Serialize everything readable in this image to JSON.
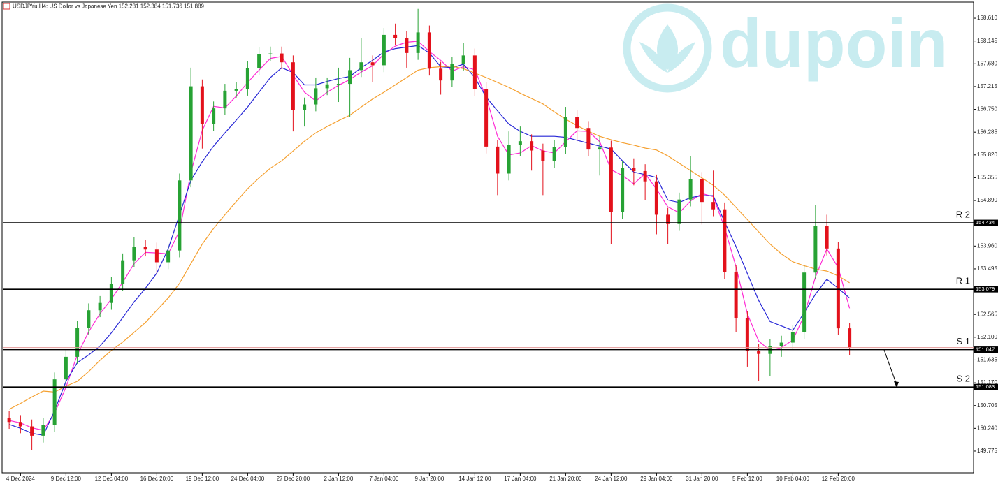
{
  "chart_data": {
    "type": "candlestick",
    "title": "USDJPYu,H4: US Dollar vs Japanese Yen 152.281 152.384 151.736 151.889",
    "watermark": "dupoin",
    "categories": [
      null,
      "4 Dec 2024",
      null,
      null,
      null,
      "9 Dec 12:00",
      null,
      null,
      null,
      "12 Dec 04:00",
      null,
      null,
      null,
      "16 Dec 20:00",
      null,
      null,
      null,
      "19 Dec 12:00",
      null,
      null,
      null,
      "24 Dec 04:00",
      null,
      null,
      null,
      "27 Dec 20:00",
      null,
      null,
      null,
      "2 Jan 12:00",
      null,
      null,
      null,
      "7 Jan 04:00",
      null,
      null,
      null,
      "9 Jan 20:00",
      null,
      null,
      null,
      "14 Jan 12:00",
      null,
      null,
      null,
      "17 Jan 04:00",
      null,
      null,
      null,
      "21 Jan 20:00",
      null,
      null,
      null,
      "24 Jan 12:00",
      null,
      null,
      null,
      "29 Jan 04:00",
      null,
      null,
      null,
      "31 Jan 20:00",
      null,
      null,
      null,
      "5 Feb 12:00",
      null,
      null,
      null,
      "10 Feb 04:00",
      null,
      null,
      null,
      "12 Feb 20:00",
      null
    ],
    "open": [
      150.45,
      150.37,
      150.28,
      150.09,
      150.31,
      151.24,
      151.7,
      152.29,
      152.65,
      152.8,
      153.19,
      153.67,
      153.94,
      153.89,
      153.63,
      153.87,
      155.3,
      157.22,
      156.45,
      156.77,
      157.13,
      157.17,
      157.59,
      157.88,
      157.89,
      157.71,
      156.74,
      156.85,
      157.18,
      157.26,
      157.27,
      157.55,
      157.71,
      157.65,
      158.27,
      158.2,
      157.9,
      158.32,
      157.58,
      157.34,
      157.68,
      157.85,
      157.16,
      155.99,
      155.44,
      156.03,
      156.1,
      155.91,
      155.7,
      155.98,
      156.59,
      156.37,
      155.93,
      155.97,
      154.65,
      155.56,
      155.49,
      155.28,
      154.6,
      154.41,
      154.91,
      155.33,
      154.86,
      154.71,
      153.43,
      152.49,
      151.82,
      151.76,
      151.92,
      151.99,
      152.2,
      153.42,
      154.37,
      153.91,
      152.281
    ],
    "high": [
      150.59,
      150.51,
      150.42,
      150.45,
      151.38,
      151.84,
      152.43,
      152.79,
      152.94,
      153.33,
      153.81,
      154.14,
      154.08,
      154.03,
      154.01,
      155.44,
      157.6,
      157.36,
      156.91,
      157.27,
      157.31,
      157.73,
      158.02,
      158.03,
      158.03,
      157.85,
      156.99,
      157.4,
      157.4,
      157.6,
      157.8,
      158.2,
      157.85,
      158.41,
      158.5,
      158.34,
      158.8,
      158.46,
      157.72,
      157.82,
      158.1,
      157.99,
      157.3,
      156.13,
      156.3,
      156.4,
      156.24,
      156.05,
      156.12,
      156.8,
      156.73,
      156.51,
      156.2,
      156.11,
      155.7,
      155.75,
      155.63,
      155.42,
      154.74,
      155.05,
      155.8,
      155.47,
      155.5,
      154.85,
      153.57,
      152.63,
      151.96,
      152.06,
      152.13,
      152.34,
      153.56,
      154.8,
      154.6,
      154.05,
      152.384
    ],
    "low": [
      150.23,
      150.14,
      149.8,
      149.95,
      150.17,
      151.1,
      151.56,
      152.15,
      152.51,
      152.66,
      153.05,
      153.53,
      153.75,
      153.4,
      153.49,
      153.73,
      155.16,
      155.95,
      156.31,
      156.63,
      156.99,
      157.03,
      157.45,
      157.74,
      157.57,
      156.3,
      156.4,
      156.71,
      157.04,
      156.9,
      156.6,
      157.41,
      157.3,
      157.51,
      158.06,
      157.6,
      157.76,
      157.44,
      157.05,
      157.2,
      157.54,
      157.02,
      155.85,
      155.0,
      155.3,
      155.8,
      155.5,
      155.0,
      155.56,
      155.84,
      156.1,
      155.79,
      155.4,
      154.0,
      154.51,
      155.2,
      154.9,
      154.2,
      154.0,
      154.27,
      154.77,
      154.4,
      154.57,
      153.29,
      152.2,
      151.5,
      151.2,
      151.3,
      151.7,
      151.85,
      152.06,
      153.28,
      153.77,
      152.14,
      151.736
    ],
    "close": [
      150.37,
      150.28,
      150.09,
      150.31,
      151.24,
      151.7,
      152.29,
      152.65,
      152.8,
      153.19,
      153.67,
      153.94,
      153.89,
      153.63,
      153.87,
      155.3,
      157.22,
      156.45,
      156.77,
      157.13,
      157.17,
      157.59,
      157.88,
      157.89,
      157.71,
      156.74,
      156.85,
      157.18,
      157.26,
      157.27,
      157.55,
      157.71,
      157.65,
      158.27,
      158.2,
      157.9,
      158.32,
      157.58,
      157.34,
      157.68,
      157.85,
      157.16,
      155.99,
      155.44,
      156.03,
      156.1,
      155.91,
      155.7,
      155.98,
      156.59,
      156.37,
      155.93,
      155.97,
      154.65,
      155.56,
      155.49,
      155.28,
      154.6,
      154.41,
      154.91,
      155.33,
      154.86,
      154.71,
      153.43,
      152.49,
      151.82,
      151.76,
      151.92,
      151.99,
      152.2,
      153.42,
      154.37,
      153.91,
      152.281,
      151.889
    ],
    "up_color": "#27a234",
    "down_color": "#e3111b",
    "series": [
      {
        "color": "#ff2ad4",
        "values": [
          150.4,
          150.35,
          150.25,
          150.2,
          150.55,
          151.08,
          151.74,
          152.21,
          152.58,
          152.88,
          153.22,
          153.6,
          153.83,
          153.82,
          153.8,
          154.27,
          155.46,
          156.32,
          156.81,
          156.78,
          157.02,
          157.3,
          157.55,
          157.79,
          157.83,
          157.45,
          157.1,
          156.92,
          157.1,
          157.24,
          157.36,
          157.51,
          157.64,
          157.88,
          158.04,
          158.12,
          158.14,
          157.93,
          157.75,
          157.53,
          157.62,
          157.56,
          157.0,
          156.2,
          155.82,
          155.86,
          156.01,
          155.9,
          155.86,
          156.09,
          156.31,
          156.3,
          156.09,
          155.52,
          155.4,
          155.23,
          155.44,
          155.12,
          154.76,
          154.64,
          154.88,
          155.03,
          154.97,
          154.33,
          153.54,
          152.58,
          152.02,
          151.83,
          151.89,
          152.04,
          152.54,
          153.33,
          153.9,
          153.52,
          152.69
        ]
      },
      {
        "color": "#2727d6",
        "values": [
          150.32,
          150.24,
          150.14,
          150.1,
          150.6,
          151.2,
          151.58,
          151.74,
          151.92,
          152.19,
          152.5,
          152.82,
          153.1,
          153.41,
          153.9,
          154.6,
          155.3,
          155.68,
          156.0,
          156.27,
          156.53,
          156.8,
          157.1,
          157.4,
          157.6,
          157.5,
          157.25,
          157.25,
          157.32,
          157.38,
          157.42,
          157.6,
          157.75,
          157.92,
          157.99,
          158.02,
          158.05,
          157.9,
          157.62,
          157.6,
          157.67,
          157.4,
          157.0,
          156.72,
          156.45,
          156.3,
          156.2,
          156.2,
          156.2,
          156.18,
          156.12,
          156.06,
          156.0,
          155.94,
          155.7,
          155.47,
          155.42,
          155.36,
          154.9,
          154.85,
          154.95,
          154.99,
          154.99,
          154.45,
          153.95,
          153.4,
          152.85,
          152.42,
          152.33,
          152.24,
          152.6,
          152.98,
          153.28,
          153.1,
          152.9
        ]
      },
      {
        "color": "#f5a030",
        "values": [
          150.63,
          150.75,
          150.88,
          151.0,
          150.98,
          151.1,
          151.2,
          151.4,
          151.63,
          151.83,
          152.0,
          152.2,
          152.4,
          152.65,
          152.9,
          153.2,
          153.6,
          154.0,
          154.32,
          154.6,
          154.87,
          155.13,
          155.35,
          155.55,
          155.7,
          155.9,
          156.1,
          156.27,
          156.4,
          156.52,
          156.63,
          156.8,
          156.96,
          157.1,
          157.25,
          157.4,
          157.55,
          157.6,
          157.62,
          157.63,
          157.58,
          157.49,
          157.4,
          157.3,
          157.2,
          157.08,
          156.97,
          156.86,
          156.7,
          156.55,
          156.42,
          156.3,
          156.2,
          156.13,
          156.07,
          156.02,
          155.96,
          155.92,
          155.8,
          155.65,
          155.5,
          155.35,
          155.2,
          155.0,
          154.75,
          154.5,
          154.25,
          154.0,
          153.8,
          153.64,
          153.56,
          153.49,
          153.45,
          153.35,
          153.21
        ]
      }
    ],
    "levels": [
      {
        "label": "R 2",
        "value": 154.434
      },
      {
        "label": "R 1",
        "value": 153.079
      },
      {
        "label": "S 1",
        "value": 151.847
      },
      {
        "label": "S 2",
        "value": 151.083
      }
    ],
    "ylim": [
      149.29,
      158.91
    ],
    "yticks": [
      {
        "value": 158.61,
        "label": "158.610"
      },
      158.145,
      {
        "value": 157.68,
        "label": "157.680"
      },
      157.215,
      {
        "value": 156.75,
        "label": "156.750"
      },
      156.285,
      {
        "value": 155.82,
        "label": "155.820"
      },
      155.355,
      {
        "value": 154.89,
        "label": "154.890"
      },
      {
        "value": 153.96,
        "label": "153.960"
      },
      153.495,
      152.565,
      {
        "value": 152.1,
        "label": "152.100"
      },
      151.635,
      {
        "value": 151.17,
        "label": "151.170"
      },
      150.705,
      {
        "value": 150.24,
        "label": "150.240"
      },
      149.775
    ],
    "grid": false
  }
}
